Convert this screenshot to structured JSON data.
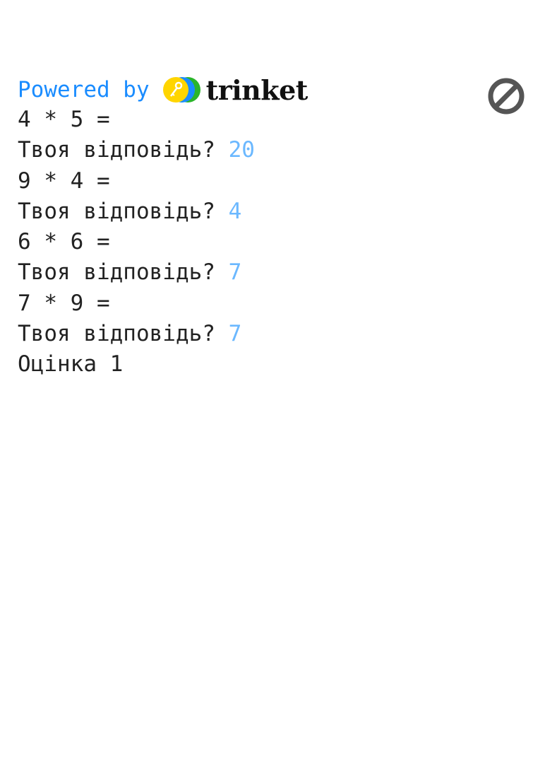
{
  "header": {
    "powered_by": "Powered by",
    "brand": "trinket",
    "logo_icon": "trinket-key-logo",
    "stop_icon": "stop-prohibited-icon"
  },
  "console": {
    "lines": [
      {
        "text": "4 * 5 =",
        "input": ""
      },
      {
        "text": "Твоя відповідь? ",
        "input": "20"
      },
      {
        "text": "9 * 4 =",
        "input": ""
      },
      {
        "text": "Твоя відповідь? ",
        "input": "4"
      },
      {
        "text": "6 * 6 =",
        "input": ""
      },
      {
        "text": "Твоя відповідь? ",
        "input": "7"
      },
      {
        "text": "7 * 9 =",
        "input": ""
      },
      {
        "text": "Твоя відповідь? ",
        "input": "7"
      },
      {
        "text": "Оцінка 1",
        "input": ""
      }
    ]
  },
  "colors": {
    "powered_by": "#1a8cff",
    "input": "#6bb8ff",
    "text": "#222222",
    "stop_icon": "#555555"
  }
}
